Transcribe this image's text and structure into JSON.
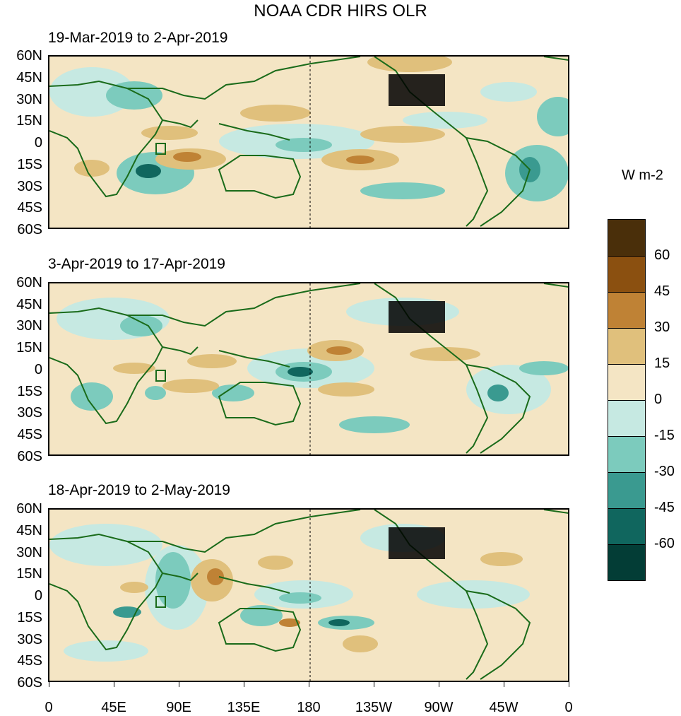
{
  "title": "NOAA CDR HIRS OLR",
  "panels": [
    {
      "title": "19-Mar-2019 to 2-Apr-2019"
    },
    {
      "title": "3-Apr-2019 to 17-Apr-2019"
    },
    {
      "title": "18-Apr-2019 to 2-May-2019"
    }
  ],
  "lat_labels": [
    "60N",
    "45N",
    "30N",
    "15N",
    "0",
    "15S",
    "30S",
    "45S",
    "60S"
  ],
  "lon_labels": [
    "0",
    "45E",
    "90E",
    "135E",
    "180",
    "135W",
    "90W",
    "45W",
    "0"
  ],
  "legend": {
    "units": "W m-2",
    "labels": [
      "60",
      "45",
      "30",
      "15",
      "0",
      "-15",
      "-30",
      "-45",
      "-60"
    ],
    "colors": [
      "#4a2f0a",
      "#8b5010",
      "#bf8235",
      "#e0c07c",
      "#f4e5c4",
      "#c6e9e2",
      "#7ccbbd",
      "#3a9a90",
      "#10665e",
      "#033d36"
    ]
  },
  "colors": {
    "coastline": "#1a6b1a",
    "dateline": "#000000",
    "background": "#f4e5c4"
  }
}
